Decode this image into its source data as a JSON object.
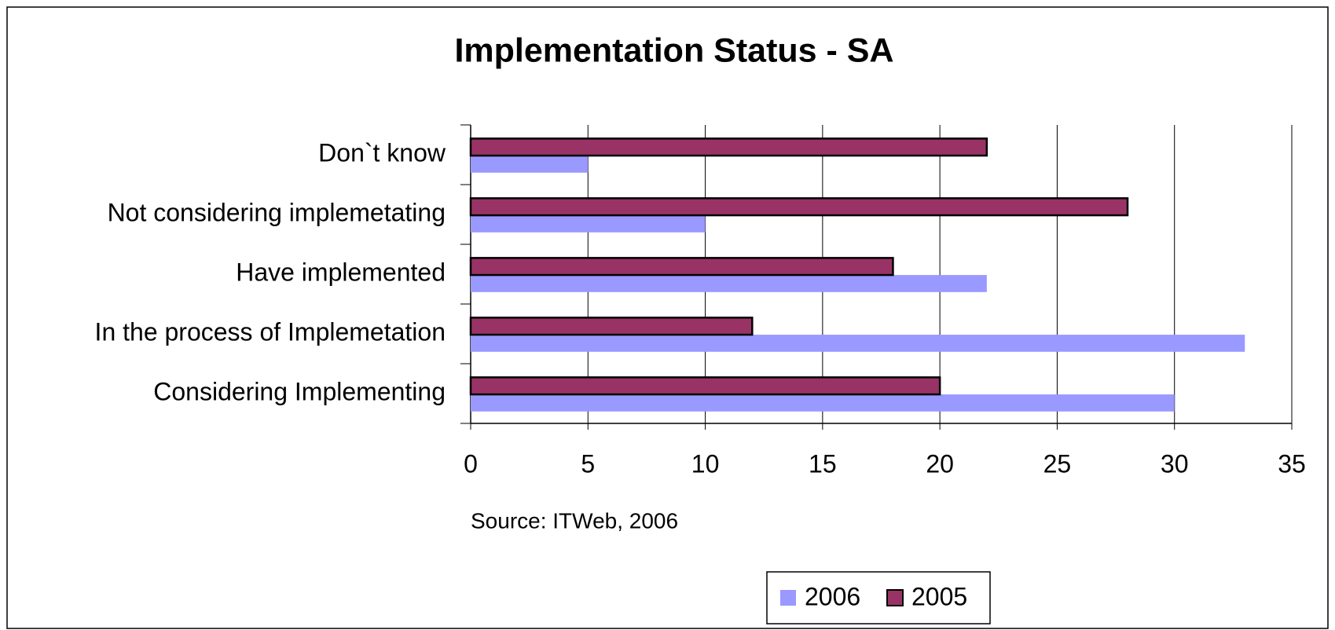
{
  "chart_data": {
    "type": "bar",
    "orientation": "horizontal",
    "title": "Implementation Status - SA",
    "categories": [
      "Considering Implementing",
      "In the process of Implemetation",
      "Have implemented",
      "Not considering implemetating",
      "Don`t know"
    ],
    "series": [
      {
        "name": "2006",
        "color": "#9999ff",
        "values": [
          30,
          33,
          22,
          10,
          5
        ]
      },
      {
        "name": "2005",
        "color": "#993366",
        "values": [
          20,
          12,
          18,
          28,
          22
        ]
      }
    ],
    "xlim": [
      0,
      35
    ],
    "xticks": [
      0,
      5,
      10,
      15,
      20,
      25,
      30,
      35
    ],
    "grid": true,
    "source": "Source: ITWeb, 2006",
    "legend": "bottom"
  }
}
